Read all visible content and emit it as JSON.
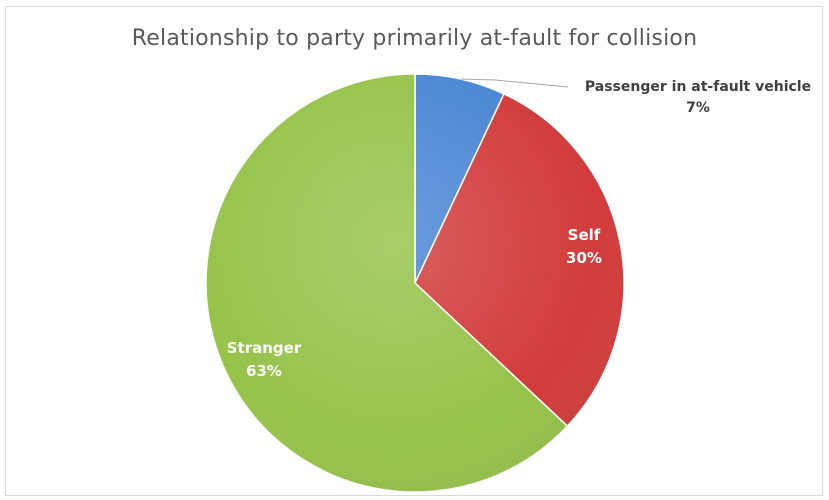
{
  "chart_data": {
    "type": "pie",
    "title": "Relationship to party primarily at-fault for collision",
    "slices": [
      {
        "label": "Passenger in at-fault vehicle",
        "value": 7,
        "value_label": "7%",
        "color": "#4a86d4"
      },
      {
        "label": "Self",
        "value": 30,
        "value_label": "30%",
        "color": "#d23b3b"
      },
      {
        "label": "Stranger",
        "value": 63,
        "value_label": "63%",
        "color": "#96c34a"
      }
    ],
    "start_angle_deg": 0,
    "direction": "clockwise",
    "legend": "none"
  }
}
